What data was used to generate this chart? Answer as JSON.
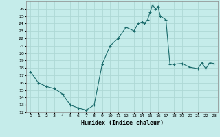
{
  "title": "",
  "xlabel": "Humidex (Indice chaleur)",
  "ylabel": "",
  "xlim": [
    -0.5,
    23.5
  ],
  "ylim": [
    12,
    27
  ],
  "yticks": [
    12,
    13,
    14,
    15,
    16,
    17,
    18,
    19,
    20,
    21,
    22,
    23,
    24,
    25,
    26
  ],
  "xticks": [
    0,
    1,
    2,
    3,
    4,
    5,
    6,
    7,
    8,
    9,
    10,
    11,
    12,
    13,
    14,
    15,
    16,
    17,
    18,
    19,
    20,
    21,
    22,
    23
  ],
  "bg_color": "#c5ecea",
  "grid_color": "#aed8d5",
  "line_color": "#1a6b6b",
  "marker": "+",
  "x": [
    0,
    1,
    2,
    3,
    4,
    5,
    6,
    7,
    8,
    9,
    10,
    11,
    12,
    13,
    13.5,
    14,
    14.3,
    14.7,
    15,
    15.3,
    15.7,
    16,
    16.3,
    17,
    17.5,
    18,
    19,
    20,
    21,
    21.5,
    22,
    22.5,
    23
  ],
  "y": [
    17.5,
    16.0,
    15.5,
    15.2,
    14.5,
    13.0,
    12.6,
    12.3,
    13.0,
    18.5,
    21.0,
    22.0,
    23.5,
    23.0,
    24.0,
    24.2,
    24.0,
    24.5,
    25.5,
    26.5,
    26.0,
    26.3,
    25.0,
    24.5,
    18.5,
    18.5,
    18.6,
    18.1,
    17.9,
    18.7,
    17.9,
    18.7,
    18.6
  ]
}
